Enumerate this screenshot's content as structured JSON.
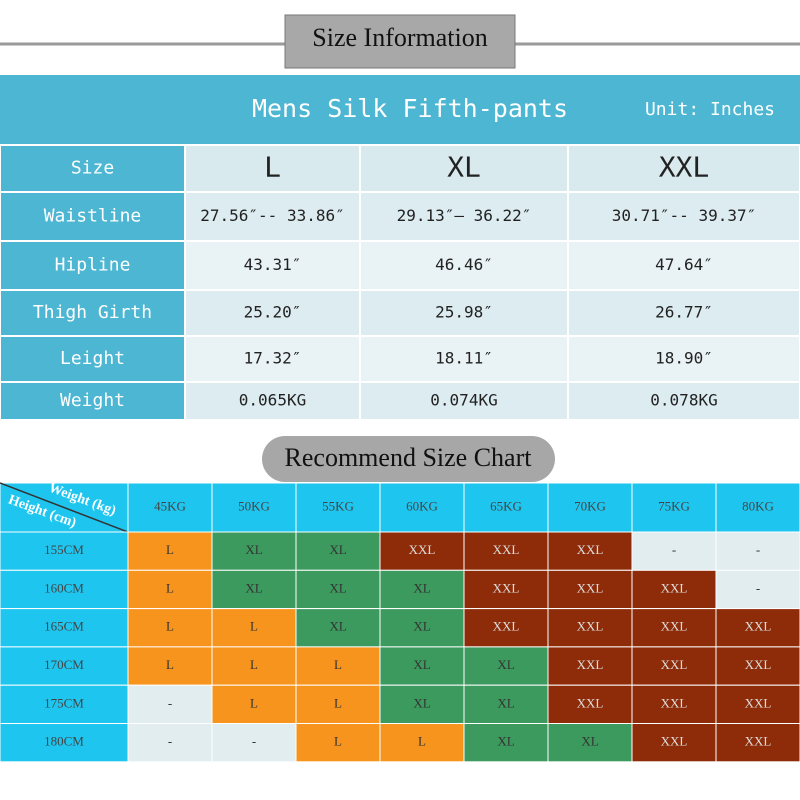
{
  "header": {
    "title": "Size Information"
  },
  "size_table": {
    "title": "Mens Silk Fifth-pants",
    "unit": "Unit: Inches",
    "columns": [
      "Size",
      "L",
      "XL",
      "XXL"
    ],
    "rows": [
      [
        "Waistline",
        "27.56″-- 33.86″",
        "29.13″— 36.22″",
        "30.71″-- 39.37″"
      ],
      [
        "Hipline",
        "43.31″",
        "46.46″",
        "47.64″"
      ],
      [
        "Thigh Girth",
        "25.20″",
        "25.98″",
        "26.77″"
      ],
      [
        "Leight",
        "17.32″",
        "18.11″",
        "18.90″"
      ],
      [
        "Weight",
        "0.065KG",
        "0.074KG",
        "0.078KG"
      ]
    ]
  },
  "recommend": {
    "title": "Recommend Size Chart",
    "weight_label": "Weight (kg)",
    "height_label": "Height (cm)",
    "weights": [
      "45KG",
      "50KG",
      "55KG",
      "60KG",
      "65KG",
      "70KG",
      "75KG",
      "80KG"
    ],
    "rows": [
      {
        "height": "155CM",
        "cells": [
          "L",
          "XL",
          "XL",
          "XXL",
          "XXL",
          "XXL",
          "-",
          "-"
        ]
      },
      {
        "height": "160CM",
        "cells": [
          "L",
          "XL",
          "XL",
          "XL",
          "XXL",
          "XXL",
          "XXL",
          "-"
        ]
      },
      {
        "height": "165CM",
        "cells": [
          "L",
          "L",
          "XL",
          "XL",
          "XXL",
          "XXL",
          "XXL",
          "XXL"
        ]
      },
      {
        "height": "170CM",
        "cells": [
          "L",
          "L",
          "L",
          "XL",
          "XL",
          "XXL",
          "XXL",
          "XXL"
        ]
      },
      {
        "height": "175CM",
        "cells": [
          "-",
          "L",
          "L",
          "XL",
          "XL",
          "XXL",
          "XXL",
          "XXL"
        ]
      },
      {
        "height": "180CM",
        "cells": [
          "-",
          "-",
          "L",
          "L",
          "XL",
          "XL",
          "XXL",
          "XXL"
        ]
      }
    ],
    "cell_colors": {
      "L": "#f7941d",
      "XL": "#3d9a5e",
      "XXL": "#8e2c0a",
      "-": "#e2edf0"
    }
  }
}
